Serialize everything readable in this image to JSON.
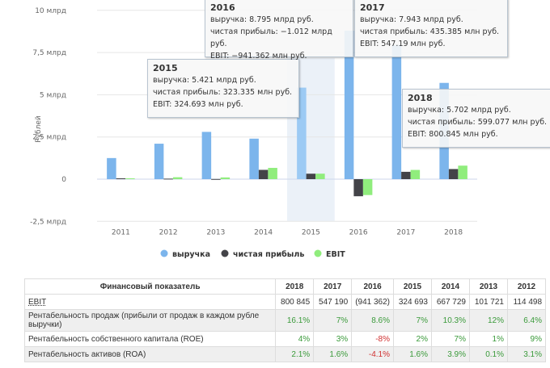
{
  "chart_data": {
    "type": "bar",
    "ylabel": "Рублей",
    "ylim": [
      -2.5,
      10
    ],
    "yticks": [
      "10 млрд",
      "7,5 млрд",
      "5 млрд",
      "2,5 млрд",
      "0",
      "-2,5 млрд"
    ],
    "ytick_values": [
      10,
      7.5,
      5,
      2.5,
      0,
      -2.5
    ],
    "categories": [
      "2011",
      "2012",
      "2013",
      "2014",
      "2015",
      "2016",
      "2017",
      "2018"
    ],
    "series": [
      {
        "name": "выручка",
        "color": "#7cb5ec",
        "values": [
          1.25,
          2.1,
          2.8,
          2.4,
          5.421,
          8.795,
          7.943,
          5.702
        ]
      },
      {
        "name": "чистая прибыль",
        "color": "#434348",
        "values": [
          0.05,
          0.03,
          0.01,
          0.55,
          0.323,
          -1.012,
          0.435,
          0.599
        ]
      },
      {
        "name": "EBIT",
        "color": "#90ed7d",
        "values": [
          0.05,
          0.114,
          0.102,
          0.668,
          0.325,
          -0.941,
          0.547,
          0.801
        ]
      }
    ],
    "highlight": "2015",
    "legend": "bottom",
    "tooltips": [
      {
        "year": "2015",
        "lines": [
          "выручка: 5.421 млрд руб.",
          "чистая прибыль: 323.335 млн руб.",
          "EBIT: 324.693 млн руб."
        ]
      },
      {
        "year": "2016",
        "lines": [
          "выручка: 8.795 млрд руб.",
          "чистая прибыль: −1.012 млрд руб.",
          "EBIT: −941.362 млн руб."
        ]
      },
      {
        "year": "2017",
        "lines": [
          "выручка: 7.943 млрд руб.",
          "чистая прибыль: 435.385 млн руб.",
          "EBIT: 547.19 млн руб."
        ]
      },
      {
        "year": "2018",
        "lines": [
          "выручка: 5.702 млрд руб.",
          "чистая прибыль: 599.077 млн руб.",
          "EBIT: 800.845 млн руб."
        ]
      }
    ]
  },
  "table": {
    "headers": [
      "Финансовый показатель",
      "2018",
      "2017",
      "2016",
      "2015",
      "2014",
      "2013",
      "2012"
    ],
    "rows": [
      {
        "label": "EBIT",
        "cells": [
          "800 845",
          "547 190",
          "(941 362)",
          "324 693",
          "667 729",
          "101 721",
          "114 498"
        ]
      },
      {
        "label": "Рентабельность продаж (прибыли от продаж в каждом рубле выручки)",
        "cells": [
          "16.1%",
          "7%",
          "8.6%",
          "7%",
          "10.3%",
          "12%",
          "6.4%"
        ]
      },
      {
        "label": "Рентабельность собственного капитала (ROE)",
        "cells": [
          "4%",
          "3%",
          "-8%",
          "2%",
          "7%",
          "1%",
          "9%"
        ]
      },
      {
        "label": "Рентабельность активов (ROA)",
        "cells": [
          "2.1%",
          "1.6%",
          "-4.1%",
          "1.6%",
          "3.9%",
          "0.1%",
          "3.1%"
        ]
      }
    ]
  }
}
